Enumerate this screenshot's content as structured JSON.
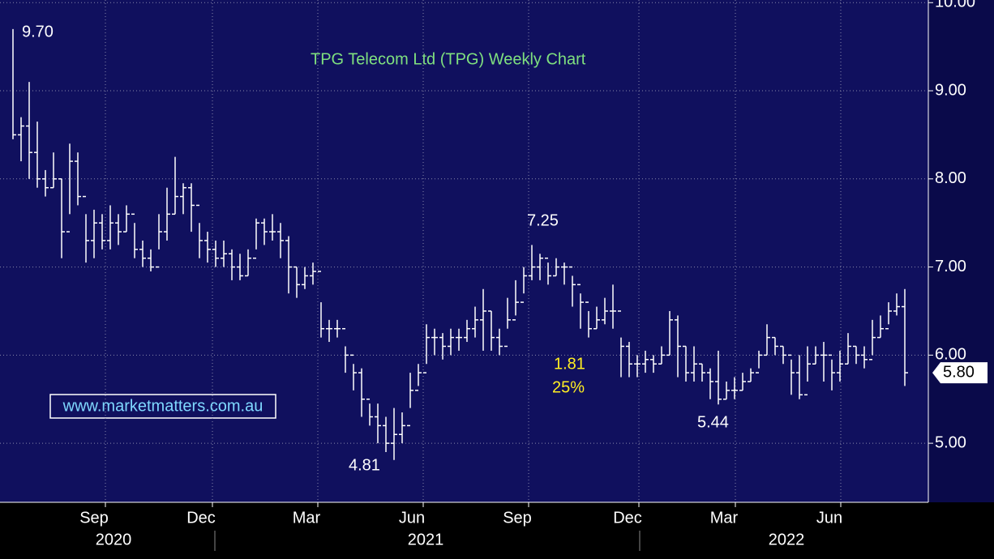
{
  "chart_data": {
    "type": "ohlc",
    "title": "TPG Telecom Ltd (TPG) Weekly Chart",
    "title_color": "#7fe07f",
    "watermark": "www.marketmatters.com.au",
    "color": "#ffffff",
    "grid": true,
    "ylim": [
      4.33,
      10.03
    ],
    "yticks": [
      {
        "value": 5,
        "label": "5.00"
      },
      {
        "value": 6,
        "label": "6.00"
      },
      {
        "value": 7,
        "label": "7.00"
      },
      {
        "value": 8,
        "label": "8.00"
      },
      {
        "value": 9,
        "label": "9.00"
      },
      {
        "value": 10,
        "label": "10.00"
      }
    ],
    "xlim": [
      -1.6,
      112.9
    ],
    "xticks": [
      {
        "value": 11.4,
        "label": "Sep"
      },
      {
        "value": 24.6,
        "label": "Dec"
      },
      {
        "value": 37.6,
        "label": "Mar"
      },
      {
        "value": 50.6,
        "label": "Jun"
      },
      {
        "value": 63.6,
        "label": "Sep"
      },
      {
        "value": 77.2,
        "label": "Dec"
      },
      {
        "value": 89.1,
        "label": "Mar"
      },
      {
        "value": 102.1,
        "label": "Jun"
      }
    ],
    "year_ticks": [
      {
        "value": 12.4,
        "label": "2020"
      },
      {
        "value": 50.9,
        "label": "2021"
      },
      {
        "value": 95.4,
        "label": "2022"
      }
    ],
    "last_price": {
      "value": 5.8,
      "label": "5.80"
    },
    "annotations": [
      {
        "text": "9.70",
        "color": "#ffffff"
      },
      {
        "text": "7.25",
        "color": "#ffffff"
      },
      {
        "text": "4.81",
        "color": "#ffffff"
      },
      {
        "text": "5.44",
        "color": "#ffffff"
      },
      {
        "text": "1.81",
        "color": "#ffee22"
      },
      {
        "text": "25%",
        "color": "#ffee22"
      }
    ],
    "high": [
      9.7,
      8.7,
      9.1,
      8.65,
      8.1,
      8.3,
      8.0,
      8.4,
      8.3,
      7.6,
      7.65,
      7.6,
      7.7,
      7.6,
      7.7,
      7.5,
      7.3,
      7.2,
      7.6,
      7.9,
      8.25,
      7.95,
      7.95,
      7.5,
      7.4,
      7.3,
      7.3,
      7.2,
      7.15,
      7.2,
      7.55,
      7.55,
      7.6,
      7.5,
      7.35,
      7.0,
      7.0,
      7.05,
      6.6,
      6.4,
      6.4,
      6.1,
      5.9,
      5.85,
      5.45,
      5.45,
      5.3,
      5.4,
      5.35,
      5.8,
      5.9,
      6.35,
      6.3,
      6.25,
      6.3,
      6.3,
      6.4,
      6.55,
      6.75,
      6.5,
      6.3,
      6.65,
      6.85,
      7.0,
      7.25,
      7.15,
      7.05,
      7.1,
      7.05,
      6.9,
      6.7,
      6.5,
      6.55,
      6.65,
      6.8,
      6.2,
      6.15,
      6.0,
      6.05,
      6.0,
      6.1,
      6.5,
      6.45,
      6.1,
      6.1,
      5.9,
      5.85,
      6.05,
      5.7,
      5.75,
      5.8,
      5.85,
      6.05,
      6.35,
      6.2,
      6.1,
      5.95,
      6.0,
      6.1,
      6.1,
      6.15,
      5.95,
      6.05,
      6.25,
      6.1,
      6.1,
      6.4,
      6.45,
      6.6,
      6.7,
      6.75
    ],
    "low": [
      8.45,
      8.2,
      8.0,
      7.9,
      7.8,
      7.9,
      7.1,
      7.6,
      7.7,
      7.05,
      7.1,
      7.2,
      7.2,
      7.25,
      7.4,
      7.1,
      7.0,
      6.95,
      7.2,
      7.3,
      7.6,
      7.6,
      7.4,
      7.1,
      7.05,
      7.0,
      7.0,
      6.85,
      6.85,
      6.9,
      7.2,
      7.25,
      7.3,
      7.1,
      6.7,
      6.65,
      6.75,
      6.8,
      6.2,
      6.15,
      6.2,
      5.8,
      5.6,
      5.3,
      5.2,
      5.0,
      4.9,
      4.81,
      5.0,
      5.4,
      5.65,
      5.9,
      6.0,
      5.95,
      6.0,
      6.05,
      6.15,
      6.2,
      6.05,
      6.05,
      6.0,
      6.3,
      6.45,
      6.7,
      6.85,
      6.85,
      6.8,
      6.9,
      6.8,
      6.55,
      6.3,
      6.2,
      6.3,
      6.35,
      6.3,
      5.75,
      5.75,
      5.75,
      5.8,
      5.8,
      5.9,
      6.0,
      5.75,
      5.7,
      5.7,
      5.7,
      5.5,
      5.44,
      5.5,
      5.5,
      5.6,
      5.7,
      5.85,
      6.0,
      6.0,
      5.9,
      5.55,
      5.5,
      5.7,
      5.9,
      5.7,
      5.6,
      5.7,
      5.9,
      5.9,
      5.85,
      6.0,
      6.2,
      6.35,
      6.45,
      5.65
    ],
    "close": [
      8.5,
      8.6,
      8.3,
      8.0,
      7.9,
      8.0,
      7.4,
      8.2,
      7.8,
      7.3,
      7.5,
      7.3,
      7.5,
      7.4,
      7.6,
      7.2,
      7.1,
      7.0,
      7.4,
      7.6,
      7.8,
      7.9,
      7.7,
      7.3,
      7.2,
      7.1,
      7.15,
      7.0,
      6.9,
      7.1,
      7.5,
      7.4,
      7.4,
      7.3,
      7.0,
      6.8,
      6.9,
      6.95,
      6.3,
      6.3,
      6.3,
      6.0,
      5.8,
      5.5,
      5.3,
      5.2,
      5.0,
      5.1,
      5.2,
      5.6,
      5.8,
      6.2,
      6.2,
      6.1,
      6.2,
      6.2,
      6.3,
      6.4,
      6.5,
      6.2,
      6.1,
      6.4,
      6.6,
      6.9,
      7.0,
      7.1,
      6.9,
      7.0,
      7.0,
      6.8,
      6.6,
      6.3,
      6.4,
      6.5,
      6.5,
      6.1,
      5.9,
      5.9,
      5.95,
      5.9,
      6.0,
      6.4,
      6.1,
      5.8,
      5.9,
      5.8,
      5.7,
      5.5,
      5.6,
      5.6,
      5.7,
      5.8,
      6.0,
      6.2,
      6.1,
      6.0,
      5.8,
      5.55,
      5.9,
      6.0,
      6.0,
      5.8,
      5.9,
      6.1,
      6.0,
      5.95,
      6.2,
      6.3,
      6.5,
      6.55,
      5.8
    ]
  }
}
